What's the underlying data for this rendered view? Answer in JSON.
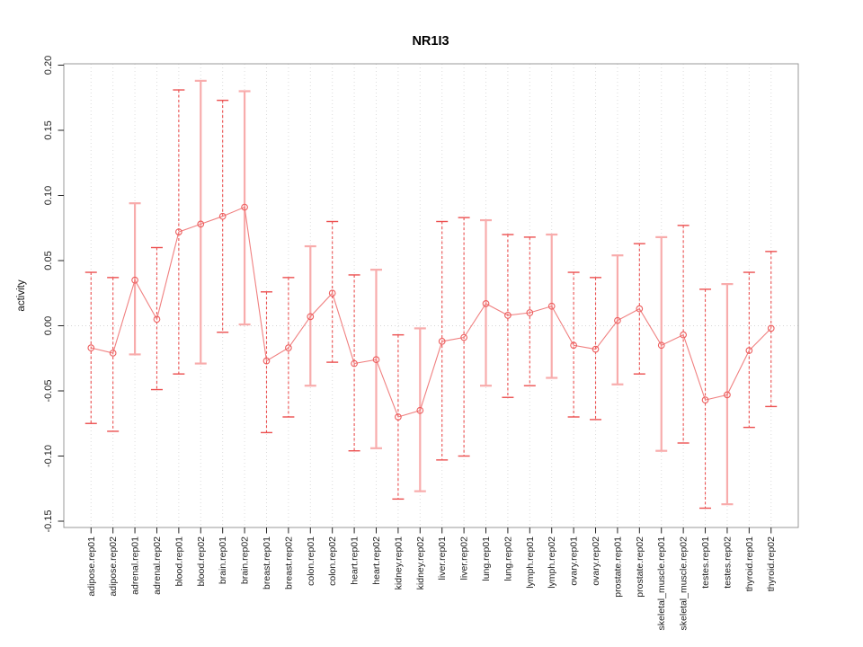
{
  "window": {
    "background": "#ffffff"
  },
  "chart_data": {
    "type": "scatter",
    "title": "NR1I3",
    "xlabel": "",
    "ylabel": "activity",
    "ylim": [
      -0.15,
      0.2
    ],
    "ytick_values": [
      0.2,
      0.15,
      0.1,
      0.05,
      0.0,
      -0.05,
      -0.1,
      -0.15
    ],
    "ytick_labels": [
      "0.20",
      "0.15",
      "0.10",
      "0.05",
      "0.00",
      "-0.05",
      "-0.10",
      "-0.15"
    ],
    "grid": {
      "vertical_dotted": true,
      "zero_line_dotted": true
    },
    "legend": "none",
    "categories": [
      "adipose.rep01",
      "adipose.rep02",
      "adrenal.rep01",
      "adrenal.rep02",
      "blood.rep01",
      "blood.rep02",
      "brain.rep01",
      "brain.rep02",
      "breast.rep01",
      "breast.rep02",
      "colon.rep01",
      "colon.rep02",
      "heart.rep01",
      "heart.rep02",
      "kidney.rep01",
      "kidney.rep02",
      "liver.rep01",
      "liver.rep02",
      "lung.rep01",
      "lung.rep02",
      "lymph.rep01",
      "lymph.rep02",
      "ovary.rep01",
      "ovary.rep02",
      "prostate.rep01",
      "prostate.rep02",
      "skeletal_muscle.rep01",
      "skeletal_muscle.rep02",
      "testes.rep01",
      "testes.rep02",
      "thyroid.rep01",
      "thyroid.rep02"
    ],
    "series": [
      {
        "name": "activity",
        "marker": "open-circle",
        "values": [
          -0.017,
          -0.021,
          0.035,
          0.005,
          0.072,
          0.078,
          0.084,
          0.091,
          -0.027,
          -0.017,
          0.007,
          0.025,
          -0.029,
          -0.026,
          -0.07,
          -0.065,
          -0.012,
          -0.009,
          0.017,
          0.008,
          0.01,
          0.015,
          -0.015,
          -0.018,
          0.004,
          0.013,
          -0.015,
          -0.007,
          -0.057,
          -0.053,
          -0.019,
          -0.002
        ],
        "error_high": [
          0.041,
          0.037,
          0.094,
          0.06,
          0.181,
          0.188,
          0.173,
          0.18,
          0.026,
          0.037,
          0.061,
          0.08,
          0.039,
          0.043,
          -0.007,
          -0.002,
          0.08,
          0.083,
          0.081,
          0.07,
          0.068,
          0.07,
          0.041,
          0.037,
          0.054,
          0.063,
          0.068,
          0.077,
          0.028,
          0.032,
          0.041,
          0.057
        ],
        "error_low": [
          -0.075,
          -0.081,
          -0.022,
          -0.049,
          -0.037,
          -0.029,
          -0.005,
          0.001,
          -0.082,
          -0.07,
          -0.046,
          -0.028,
          -0.096,
          -0.094,
          -0.133,
          -0.127,
          -0.103,
          -0.1,
          -0.046,
          -0.055,
          -0.046,
          -0.04,
          -0.07,
          -0.072,
          -0.045,
          -0.037,
          -0.096,
          -0.09,
          -0.14,
          -0.137,
          -0.078,
          -0.062
        ],
        "bar_styles": [
          "dashed",
          "dashed",
          "solid",
          "dashed",
          "dashed",
          "solid",
          "dashed",
          "solid",
          "dashed",
          "dashed",
          "solid",
          "dashed",
          "dashed",
          "solid",
          "dashed",
          "solid",
          "dashed",
          "dashed",
          "solid",
          "dashed",
          "dashed",
          "solid",
          "dashed",
          "dashed",
          "solid",
          "dashed",
          "solid",
          "dashed",
          "dashed",
          "solid",
          "dashed",
          "dashed"
        ]
      }
    ],
    "colors": {
      "point": "#ed5e5e",
      "line": "#f08080",
      "dashed_bar": "#ec5050",
      "solid_bar": "#f8acac",
      "frame": "#999999",
      "axis": "#222222",
      "tick_label": "#1c1c1c",
      "grid": "#dcdcdc",
      "zero_line": "#d6d6d6"
    }
  }
}
